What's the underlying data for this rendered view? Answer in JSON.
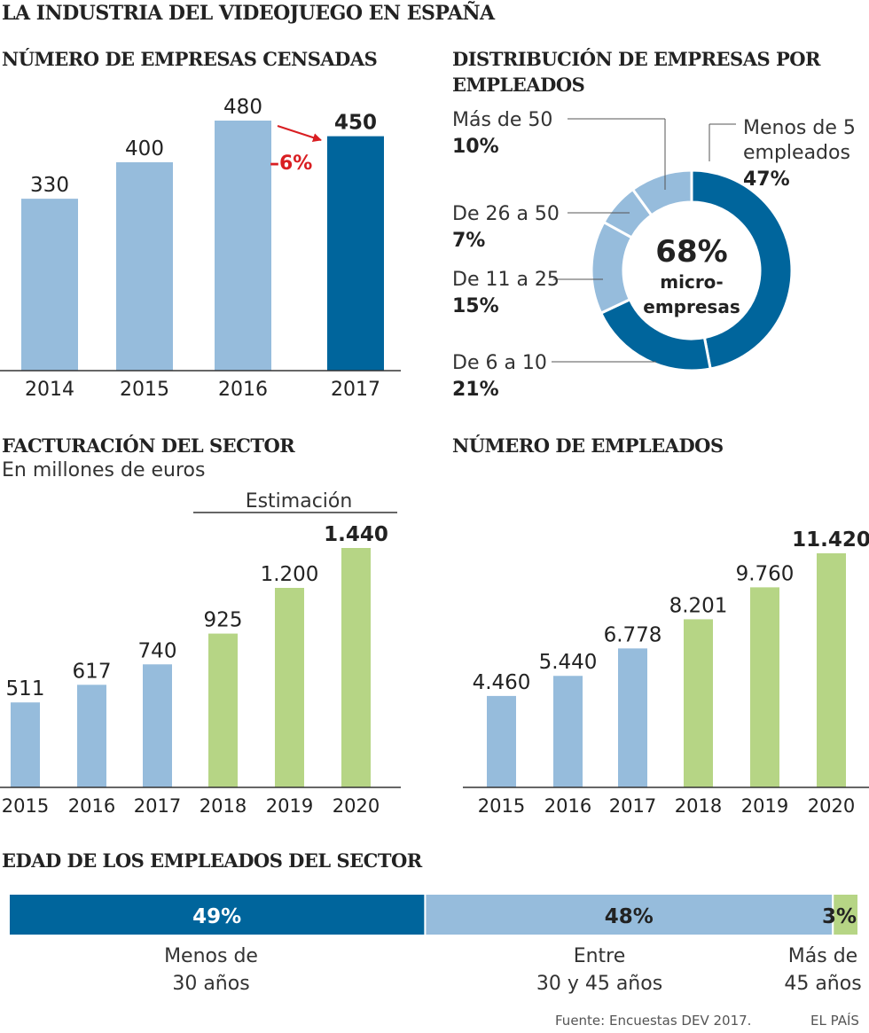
{
  "title": "LA INDUSTRIA DEL VIDEOJUEGO EN ESPAÑA",
  "colors": {
    "light_blue": "#96bcdc",
    "dark_blue": "#00659c",
    "green": "#b6d585",
    "red": "#d91e22",
    "text": "#222222"
  },
  "chart_data": [
    {
      "id": "empresas",
      "type": "bar",
      "title": "NÚMERO DE EMPRESAS CENSADAS",
      "categories": [
        "2014",
        "2015",
        "2016",
        "2017"
      ],
      "values": [
        330,
        400,
        480,
        450
      ],
      "value_labels": [
        "330",
        "400",
        "480",
        "450"
      ],
      "highlight": [
        false,
        false,
        false,
        true
      ],
      "annotation": "–6%",
      "ylim": [
        0,
        480
      ]
    },
    {
      "id": "distribucion",
      "type": "pie",
      "title": "DISTRIBUCIÓN DE EMPRESAS POR EMPLEADOS",
      "slices": [
        {
          "label": "Menos de 5 empleados",
          "label_lines": [
            "Menos de 5",
            "empleados"
          ],
          "value": 47,
          "pct": "47%"
        },
        {
          "label": "De 6 a 10",
          "label_lines": [
            "De 6 a 10"
          ],
          "value": 21,
          "pct": "21%"
        },
        {
          "label": "De 11 a 25",
          "label_lines": [
            "De 11 a 25"
          ],
          "value": 15,
          "pct": "15%"
        },
        {
          "label": "De 26 a 50",
          "label_lines": [
            "De 26 a 50"
          ],
          "value": 7,
          "pct": "7%"
        },
        {
          "label": "Más de 50",
          "label_lines": [
            "Más de 50"
          ],
          "value": 10,
          "pct": "10%"
        }
      ],
      "center_value": "68%",
      "center_text": [
        "micro-",
        "empresas"
      ]
    },
    {
      "id": "facturacion",
      "type": "bar",
      "title": "FACTURACIÓN DEL SECTOR",
      "subtitle": "En millones de euros",
      "estimate_label": "Estimación",
      "categories": [
        "2015",
        "2016",
        "2017",
        "2018",
        "2019",
        "2020"
      ],
      "values": [
        511,
        617,
        740,
        925,
        1200,
        1440
      ],
      "value_labels": [
        "511",
        "617",
        "740",
        "925",
        "1.200",
        "1.440"
      ],
      "estimated": [
        false,
        false,
        false,
        true,
        true,
        true
      ],
      "ylim": [
        0,
        1440
      ]
    },
    {
      "id": "empleados",
      "type": "bar",
      "title": "NÚMERO DE EMPLEADOS",
      "categories": [
        "2015",
        "2016",
        "2017",
        "2018",
        "2019",
        "2020"
      ],
      "values": [
        4460,
        5440,
        6778,
        8201,
        9760,
        11420
      ],
      "value_labels": [
        "4.460",
        "5.440",
        "6.778",
        "8.201",
        "9.760",
        "11.420"
      ],
      "estimated": [
        false,
        false,
        false,
        true,
        true,
        true
      ],
      "ylim": [
        0,
        11420
      ]
    },
    {
      "id": "edad",
      "type": "bar",
      "orientation": "stacked-horizontal",
      "title": "EDAD DE LOS EMPLEADOS DEL SECTOR",
      "segments": [
        {
          "value": 49,
          "pct": "49%",
          "label_lines": [
            "Menos de",
            "30 años"
          ]
        },
        {
          "value": 48,
          "pct": "48%",
          "label_lines": [
            "Entre",
            "30 y 45 años"
          ]
        },
        {
          "value": 3,
          "pct": "3%",
          "label_lines": [
            "Más de",
            "45 años"
          ]
        }
      ]
    }
  ],
  "footer": {
    "source": "Fuente: Encuestas DEV 2017.",
    "brand": "EL PAÍS"
  }
}
